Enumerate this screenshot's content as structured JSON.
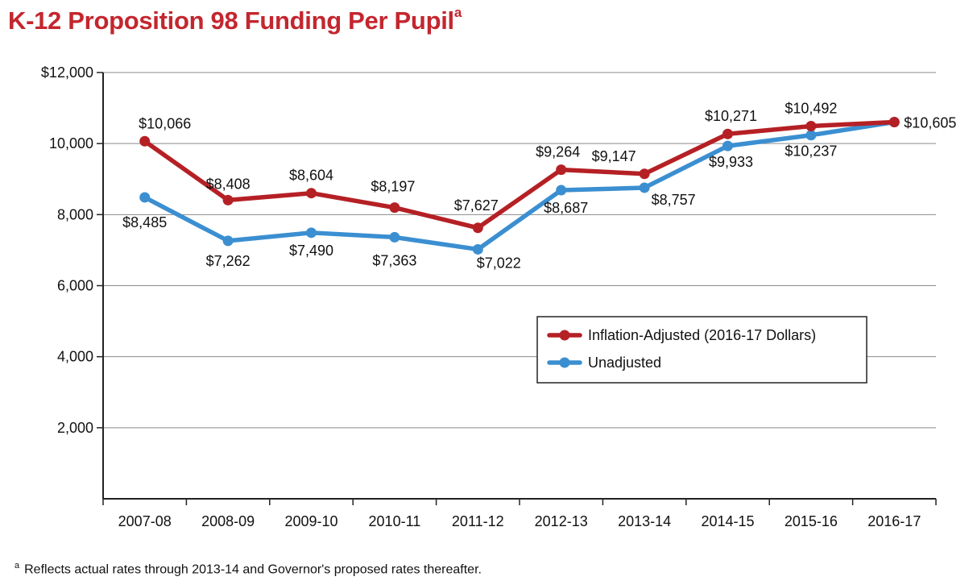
{
  "title": "K-12 Proposition 98 Funding Per Pupil",
  "title_footnote_marker": "a",
  "footnote": {
    "marker": "a",
    "text": "Reflects actual rates through 2013-14 and Governor's proposed rates thereafter."
  },
  "colors": {
    "title": "#c4262e",
    "inflation": "#b52025",
    "unadjusted": "#3b8fd1"
  },
  "chart_data": {
    "type": "line",
    "categories": [
      "2007-08",
      "2008-09",
      "2009-10",
      "2010-11",
      "2011-12",
      "2012-13",
      "2013-14",
      "2014-15",
      "2015-16",
      "2016-17"
    ],
    "ylim": [
      0,
      12000
    ],
    "y_ticks": [
      2000,
      4000,
      6000,
      8000,
      10000,
      12000
    ],
    "y_tick_labels": [
      "2,000",
      "4,000",
      "6,000",
      "8,000",
      "10,000",
      "$12,000"
    ],
    "grid": true,
    "legend_position": "right",
    "series": [
      {
        "name": "Inflation-Adjusted (2016-17 Dollars)",
        "color": "#b52025",
        "values": [
          10066,
          8408,
          8604,
          8197,
          7627,
          9264,
          9147,
          10271,
          10492,
          10605
        ],
        "labels": [
          "$10,066",
          "$8,408",
          "$8,604",
          "$8,197",
          "$7,627",
          "$9,264",
          "$9,147",
          "$10,271",
          "$10,492",
          "$10,605"
        ]
      },
      {
        "name": "Unadjusted",
        "color": "#3b8fd1",
        "values": [
          8485,
          7262,
          7490,
          7363,
          7022,
          8687,
          8757,
          9933,
          10237,
          10605
        ],
        "labels": [
          "$8,485",
          "$7,262",
          "$7,490",
          "$7,363",
          "$7,022",
          "$8,687",
          "$8,757",
          "$9,933",
          "$10,237",
          ""
        ]
      }
    ]
  }
}
